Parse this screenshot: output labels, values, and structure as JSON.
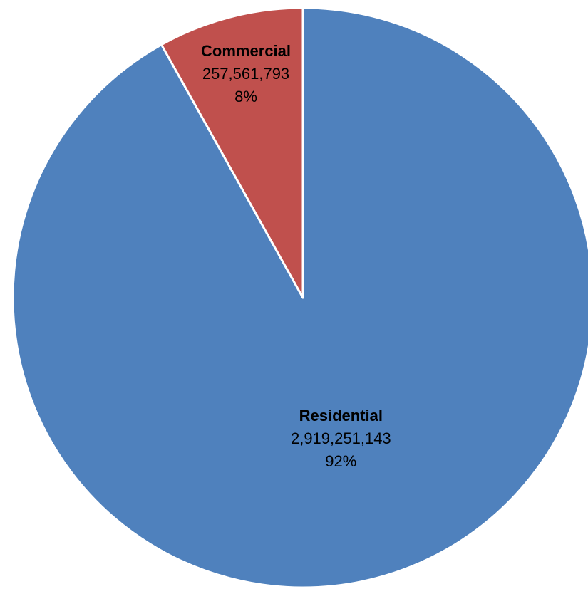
{
  "chart_data": {
    "type": "pie",
    "start_angle": "12 o'clock",
    "direction": "clockwise",
    "slices": [
      {
        "name": "Residential",
        "value": 2919251143,
        "value_label": "2,919,251,143",
        "percent_label": "92%",
        "color": "#4F81BD"
      },
      {
        "name": "Commercial",
        "value": 257561793,
        "value_label": "257,561,793",
        "percent_label": "8%",
        "color": "#C0504D"
      }
    ]
  }
}
